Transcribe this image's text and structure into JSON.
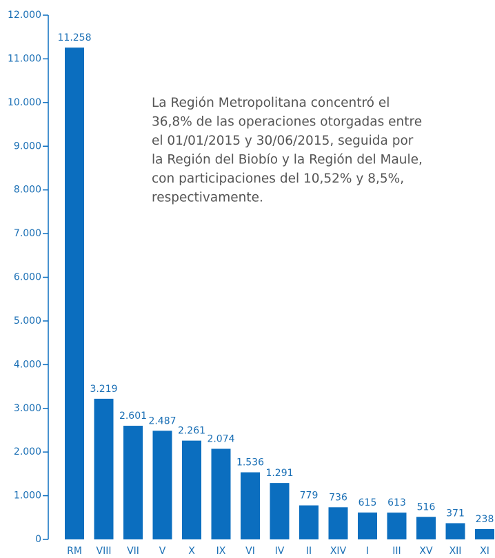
{
  "chart_data": {
    "type": "bar",
    "categories": [
      "RM",
      "VIII",
      "VII",
      "V",
      "X",
      "IX",
      "VI",
      "IV",
      "II",
      "XIV",
      "I",
      "III",
      "XV",
      "XII",
      "XI"
    ],
    "values": [
      11258,
      3219,
      2601,
      2487,
      2261,
      2074,
      1536,
      1291,
      779,
      736,
      615,
      613,
      516,
      371,
      238
    ],
    "value_labels": [
      "11.258",
      "3.219",
      "2.601",
      "2.487",
      "2.261",
      "2.074",
      "1.536",
      "1.291",
      "779",
      "736",
      "615",
      "613",
      "516",
      "371",
      "238"
    ],
    "color": "#0b6ebf",
    "ylim": [
      0,
      12000
    ],
    "yticks": [
      0,
      {
        "value": 1000,
        "label": "1.000"
      },
      {
        "value": 2000,
        "label": "2.000"
      },
      {
        "value": 3000,
        "label": "3.000"
      },
      {
        "value": 4000,
        "label": "4.000"
      },
      {
        "value": 5000,
        "label": "5.000"
      },
      {
        "value": 6000,
        "label": "6.000"
      },
      {
        "value": 7000,
        "label": "7.000"
      },
      {
        "value": 8000,
        "label": "8.000"
      },
      {
        "value": 9000,
        "label": "9.000"
      },
      {
        "value": 10000,
        "label": "10.000"
      },
      {
        "value": 11000,
        "label": "11.000"
      },
      {
        "value": 12000,
        "label": "12.000"
      }
    ],
    "grid": false,
    "annotation": [
      "La Región Metropolitana concentró el",
      "36,8% de las operaciones otorgadas entre",
      "el 01/01/2015 y 30/06/2015, seguida por",
      "la Región del Biobío y la Región del Maule,",
      "con participaciones del 10,52% y 8,5%,",
      "respectivamente."
    ]
  }
}
